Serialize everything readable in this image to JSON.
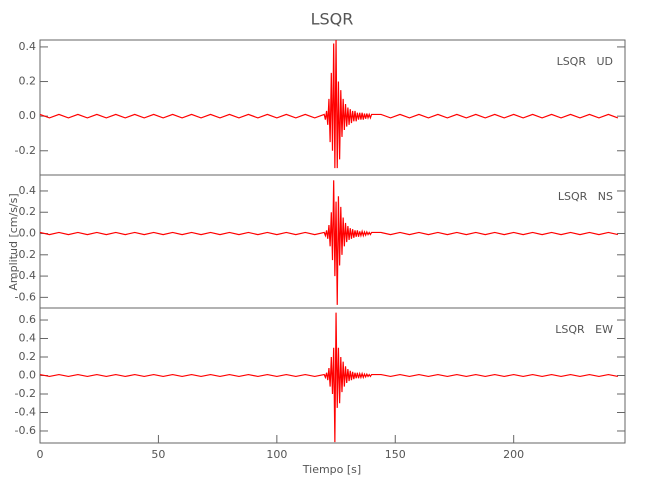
{
  "figure": {
    "title": "LSQR",
    "x_label": "Tiempo [s]",
    "y_label": "Amplitud [cm/s/s]"
  },
  "chart_data": [
    {
      "type": "line",
      "label": "LSQR   UD",
      "color": "#ff0000",
      "xlim": [
        0,
        247
      ],
      "ylim": [
        -0.34,
        0.44
      ],
      "yticks": [
        -0.2,
        {
          "value": 0,
          "label": "0.0"
        },
        0.2,
        0.4
      ],
      "x": [
        0,
        4,
        8,
        12,
        16,
        20,
        24,
        28,
        32,
        36,
        40,
        44,
        48,
        52,
        56,
        60,
        64,
        68,
        72,
        76,
        80,
        84,
        88,
        92,
        96,
        100,
        104,
        108,
        112,
        116,
        120,
        120.5,
        121,
        121.5,
        122,
        122.5,
        123,
        123.5,
        124,
        124.5,
        125,
        125.5,
        126,
        126.5,
        127,
        127.5,
        128,
        128.5,
        129,
        129.5,
        130,
        130.5,
        131,
        131.5,
        132,
        132.5,
        133,
        133.5,
        134,
        134.5,
        135,
        135.5,
        136,
        136.5,
        137,
        137.5,
        138,
        138.5,
        139,
        139.5,
        140,
        144,
        148,
        152,
        156,
        160,
        164,
        168,
        172,
        176,
        180,
        184,
        188,
        192,
        196,
        200,
        204,
        208,
        212,
        216,
        220,
        224,
        228,
        232,
        236,
        240,
        244
      ],
      "values": [
        0.01,
        -0.01,
        0.01,
        -0.01,
        0.01,
        -0.01,
        0.01,
        -0.01,
        0.01,
        -0.01,
        0.01,
        -0.01,
        0.01,
        -0.01,
        0.01,
        -0.01,
        0.01,
        -0.01,
        0.01,
        -0.01,
        0.01,
        -0.01,
        0.01,
        -0.01,
        0.01,
        -0.01,
        0.01,
        -0.01,
        0.01,
        -0.01,
        0.01,
        -0.02,
        0.03,
        -0.05,
        0.1,
        -0.15,
        0.25,
        -0.2,
        0.42,
        -0.3,
        0.44,
        -0.3,
        0.2,
        -0.25,
        0.15,
        -0.12,
        0.1,
        -0.08,
        0.07,
        -0.06,
        0.05,
        -0.05,
        0.04,
        -0.04,
        0.03,
        -0.03,
        0.03,
        -0.03,
        0.02,
        -0.02,
        0.02,
        -0.02,
        0.02,
        -0.02,
        0.015,
        -0.015,
        0.015,
        -0.01,
        0.01,
        -0.01,
        0.01,
        0.01,
        -0.01,
        0.01,
        -0.01,
        0.01,
        -0.01,
        0.01,
        -0.01,
        0.01,
        -0.01,
        0.01,
        -0.01,
        0.01,
        -0.01,
        0.01,
        -0.01,
        0.01,
        -0.01,
        0.01,
        -0.01,
        0.01,
        -0.01,
        0.01,
        -0.01,
        0.01,
        -0.01
      ]
    },
    {
      "type": "line",
      "label": "LSQR   NS",
      "color": "#ff0000",
      "xlim": [
        0,
        247
      ],
      "ylim": [
        -0.7,
        0.55
      ],
      "yticks": [
        -0.6,
        -0.4,
        -0.2,
        {
          "value": 0,
          "label": "0.0"
        },
        0.2,
        0.4
      ],
      "x": [
        0,
        4,
        8,
        12,
        16,
        20,
        24,
        28,
        32,
        36,
        40,
        44,
        48,
        52,
        56,
        60,
        64,
        68,
        72,
        76,
        80,
        84,
        88,
        92,
        96,
        100,
        104,
        108,
        112,
        116,
        120,
        120.5,
        121,
        121.5,
        122,
        122.5,
        123,
        123.5,
        124,
        124.5,
        125,
        125.5,
        126,
        126.5,
        127,
        127.5,
        128,
        128.5,
        129,
        129.5,
        130,
        130.5,
        131,
        131.5,
        132,
        132.5,
        133,
        133.5,
        134,
        134.5,
        135,
        135.5,
        136,
        136.5,
        137,
        137.5,
        138,
        138.5,
        139,
        139.5,
        140,
        144,
        148,
        152,
        156,
        160,
        164,
        168,
        172,
        176,
        180,
        184,
        188,
        192,
        196,
        200,
        204,
        208,
        212,
        216,
        220,
        224,
        228,
        232,
        236,
        240,
        244
      ],
      "values": [
        0.01,
        -0.01,
        0.01,
        -0.01,
        0.01,
        -0.01,
        0.01,
        -0.01,
        0.01,
        -0.01,
        0.01,
        -0.01,
        0.01,
        -0.01,
        0.01,
        -0.01,
        0.01,
        -0.01,
        0.01,
        -0.01,
        0.01,
        -0.01,
        0.01,
        -0.01,
        0.01,
        -0.01,
        0.01,
        -0.01,
        0.01,
        -0.01,
        0.01,
        -0.02,
        0.03,
        -0.05,
        0.08,
        -0.12,
        0.2,
        -0.25,
        0.5,
        -0.4,
        0.3,
        -0.67,
        0.35,
        -0.3,
        0.25,
        -0.2,
        0.15,
        -0.12,
        0.1,
        -0.08,
        0.07,
        -0.06,
        0.05,
        -0.05,
        0.04,
        -0.04,
        0.03,
        -0.03,
        0.03,
        -0.03,
        0.02,
        -0.02,
        0.02,
        -0.02,
        0.015,
        -0.015,
        0.015,
        -0.01,
        0.01,
        -0.01,
        0.01,
        0.01,
        -0.01,
        0.01,
        -0.01,
        0.01,
        -0.01,
        0.01,
        -0.01,
        0.01,
        -0.01,
        0.01,
        -0.01,
        0.01,
        -0.01,
        0.01,
        -0.01,
        0.01,
        -0.01,
        0.01,
        -0.01,
        0.01,
        -0.01,
        0.01,
        -0.01,
        0.01,
        -0.01
      ]
    },
    {
      "type": "line",
      "label": "LSQR   EW",
      "color": "#ff0000",
      "xlim": [
        0,
        247
      ],
      "ylim": [
        -0.73,
        0.73
      ],
      "yticks": [
        -0.6,
        -0.4,
        -0.2,
        {
          "value": 0,
          "label": "0.0"
        },
        0.2,
        0.4,
        0.6
      ],
      "xticks": [
        0,
        50,
        100,
        150,
        200
      ],
      "x": [
        0,
        4,
        8,
        12,
        16,
        20,
        24,
        28,
        32,
        36,
        40,
        44,
        48,
        52,
        56,
        60,
        64,
        68,
        72,
        76,
        80,
        84,
        88,
        92,
        96,
        100,
        104,
        108,
        112,
        116,
        120,
        120.5,
        121,
        121.5,
        122,
        122.5,
        123,
        123.5,
        124,
        124.5,
        125,
        125.5,
        126,
        126.5,
        127,
        127.5,
        128,
        128.5,
        129,
        129.5,
        130,
        130.5,
        131,
        131.5,
        132,
        132.5,
        133,
        133.5,
        134,
        134.5,
        135,
        135.5,
        136,
        136.5,
        137,
        137.5,
        138,
        138.5,
        139,
        139.5,
        140,
        144,
        148,
        152,
        156,
        160,
        164,
        168,
        172,
        176,
        180,
        184,
        188,
        192,
        196,
        200,
        204,
        208,
        212,
        216,
        220,
        224,
        228,
        232,
        236,
        240,
        244
      ],
      "values": [
        0.01,
        -0.01,
        0.01,
        -0.01,
        0.01,
        -0.01,
        0.01,
        -0.01,
        0.01,
        -0.01,
        0.01,
        -0.01,
        0.01,
        -0.01,
        0.01,
        -0.01,
        0.01,
        -0.01,
        0.01,
        -0.01,
        0.01,
        -0.01,
        0.01,
        -0.01,
        0.01,
        -0.01,
        0.01,
        -0.01,
        0.01,
        -0.01,
        0.01,
        -0.02,
        0.03,
        -0.05,
        0.08,
        -0.12,
        0.2,
        -0.2,
        0.3,
        -0.72,
        0.68,
        -0.35,
        0.3,
        -0.3,
        0.2,
        -0.18,
        0.15,
        -0.12,
        0.1,
        -0.08,
        0.07,
        -0.06,
        0.05,
        -0.05,
        0.04,
        -0.04,
        0.03,
        -0.03,
        0.03,
        -0.03,
        0.02,
        -0.02,
        0.02,
        -0.02,
        0.015,
        -0.015,
        0.015,
        -0.01,
        0.01,
        -0.01,
        0.01,
        0.01,
        -0.01,
        0.01,
        -0.01,
        0.01,
        -0.01,
        0.01,
        -0.01,
        0.01,
        -0.01,
        0.01,
        -0.01,
        0.01,
        -0.01,
        0.01,
        -0.01,
        0.01,
        -0.01,
        0.01,
        -0.01,
        0.01,
        -0.01,
        0.01,
        -0.01,
        0.01,
        -0.01
      ]
    }
  ]
}
